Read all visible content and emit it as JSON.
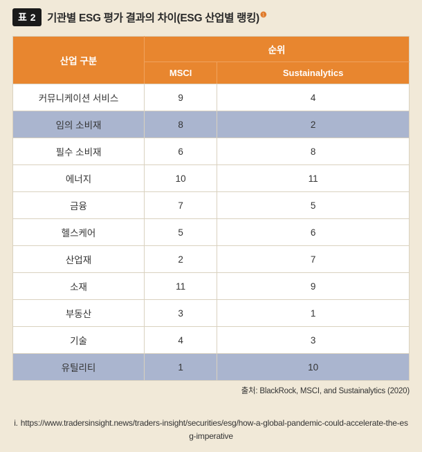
{
  "header": {
    "badge": "표 2",
    "title": "기관별 ESG 평가 결과의 차이(ESG 산업별 랭킹)",
    "sup": "❶"
  },
  "table": {
    "col_category": "산업 구분",
    "col_rank": "순위",
    "col_msci": "MSCI",
    "col_sust": "Sustainalytics",
    "rows": [
      {
        "name": "커뮤니케이션 서비스",
        "msci": "9",
        "sust": "4",
        "alt": false
      },
      {
        "name": "임의 소비재",
        "msci": "8",
        "sust": "2",
        "alt": true
      },
      {
        "name": "필수 소비재",
        "msci": "6",
        "sust": "8",
        "alt": false
      },
      {
        "name": "에너지",
        "msci": "10",
        "sust": "11",
        "alt": false
      },
      {
        "name": "금융",
        "msci": "7",
        "sust": "5",
        "alt": false
      },
      {
        "name": "헬스케어",
        "msci": "5",
        "sust": "6",
        "alt": false
      },
      {
        "name": "산업재",
        "msci": "2",
        "sust": "7",
        "alt": false
      },
      {
        "name": "소재",
        "msci": "11",
        "sust": "9",
        "alt": false
      },
      {
        "name": "부동산",
        "msci": "3",
        "sust": "1",
        "alt": false
      },
      {
        "name": "기술",
        "msci": "4",
        "sust": "3",
        "alt": false
      },
      {
        "name": "유틸리티",
        "msci": "1",
        "sust": "10",
        "alt": true
      }
    ]
  },
  "source": "출처: BlackRock, MSCI, and Sustainalytics (2020)",
  "footnote": {
    "idx": "i.",
    "text": "https://www.tradersinsight.news/traders-insight/securities/esg/how-a-global-pandemic-could-accelerate-the-esg-imperative"
  },
  "colors": {
    "page_bg": "#f1e9d8",
    "header_bg": "#e8862f",
    "alt_row_bg": "#aab5cf",
    "border": "#d9d1bf",
    "badge_bg": "#1a1a1a"
  }
}
